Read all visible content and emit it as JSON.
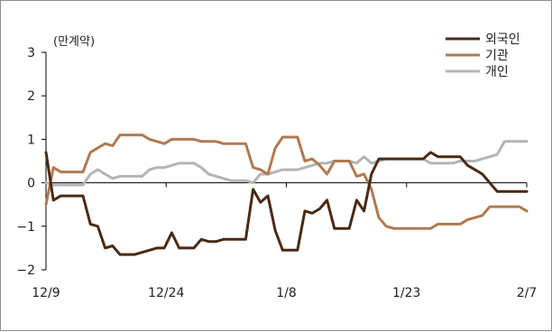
{
  "chart_data": {
    "type": "line",
    "unit_label": "(만계약)",
    "ylim": [
      -2,
      3
    ],
    "yticks": [
      "3",
      "2",
      "1",
      "0",
      "−1",
      "−2"
    ],
    "ytick_values": [
      3,
      2,
      1,
      0,
      -1,
      -2
    ],
    "xticks": [
      "12/9",
      "12/24",
      "1/8",
      "1/23",
      "2/7"
    ],
    "grid": false,
    "legend_position": "top-right",
    "series": [
      {
        "name": "외국인",
        "color": "#4a2a14",
        "values": [
          0.7,
          -0.4,
          -0.3,
          -0.3,
          -0.3,
          -0.3,
          -0.95,
          -1.0,
          -1.5,
          -1.45,
          -1.65,
          -1.65,
          -1.65,
          -1.6,
          -1.55,
          -1.5,
          -1.5,
          -1.15,
          -1.5,
          -1.5,
          -1.5,
          -1.3,
          -1.35,
          -1.35,
          -1.3,
          -1.3,
          -1.3,
          -1.3,
          -0.15,
          -0.45,
          -0.3,
          -1.1,
          -1.55,
          -1.55,
          -1.55,
          -0.65,
          -0.7,
          -0.6,
          -0.4,
          -1.05,
          -1.05,
          -1.05,
          -0.4,
          -0.65,
          0.2,
          0.55,
          0.55,
          0.55,
          0.55,
          0.55,
          0.55,
          0.55,
          0.7,
          0.6,
          0.6,
          0.6,
          0.6,
          0.4,
          0.3,
          0.2,
          0.0,
          -0.2,
          -0.2,
          -0.2,
          -0.2,
          -0.2
        ]
      },
      {
        "name": "기관",
        "color": "#b07a50",
        "values": [
          -0.5,
          0.35,
          0.25,
          0.25,
          0.25,
          0.25,
          0.7,
          0.8,
          0.9,
          0.85,
          1.1,
          1.1,
          1.1,
          1.1,
          1.0,
          0.95,
          0.9,
          1.0,
          1.0,
          1.0,
          1.0,
          0.95,
          0.95,
          0.95,
          0.9,
          0.9,
          0.9,
          0.9,
          0.35,
          0.3,
          0.2,
          0.8,
          1.05,
          1.05,
          1.05,
          0.5,
          0.55,
          0.4,
          0.2,
          0.5,
          0.5,
          0.5,
          0.15,
          0.2,
          -0.15,
          -0.8,
          -1.0,
          -1.05,
          -1.05,
          -1.05,
          -1.05,
          -1.05,
          -1.05,
          -0.95,
          -0.95,
          -0.95,
          -0.95,
          -0.85,
          -0.8,
          -0.75,
          -0.55,
          -0.55,
          -0.55,
          -0.55,
          -0.55,
          -0.65
        ]
      },
      {
        "name": "개인",
        "color": "#b4b4b4",
        "values": [
          0.0,
          -0.05,
          -0.05,
          -0.05,
          -0.05,
          -0.05,
          0.2,
          0.3,
          0.2,
          0.1,
          0.15,
          0.15,
          0.15,
          0.15,
          0.3,
          0.35,
          0.35,
          0.4,
          0.45,
          0.45,
          0.45,
          0.35,
          0.2,
          0.15,
          0.1,
          0.05,
          0.05,
          0.05,
          0.0,
          0.2,
          0.2,
          0.25,
          0.3,
          0.3,
          0.3,
          0.35,
          0.4,
          0.45,
          0.45,
          0.5,
          0.5,
          0.5,
          0.45,
          0.6,
          0.45,
          0.5,
          0.55,
          0.55,
          0.55,
          0.55,
          0.55,
          0.55,
          0.45,
          0.45,
          0.45,
          0.45,
          0.5,
          0.5,
          0.5,
          0.55,
          0.6,
          0.65,
          0.95,
          0.95,
          0.95,
          0.95
        ]
      }
    ]
  }
}
